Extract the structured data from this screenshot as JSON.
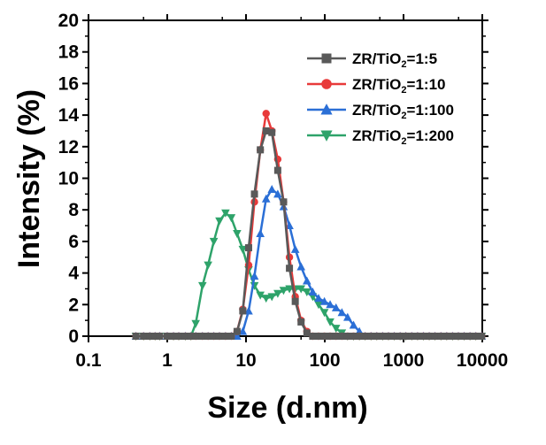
{
  "chart_data": {
    "type": "line",
    "xlabel": "Size (d.nm)",
    "ylabel": "Intensity (%)",
    "xscale": "log",
    "xlim": [
      0.1,
      10000
    ],
    "ylim": [
      0,
      20
    ],
    "xticks": [
      "0.1",
      "1",
      "10",
      "100",
      "1000",
      "10000"
    ],
    "yticks": [
      "0",
      "2",
      "4",
      "6",
      "8",
      "10",
      "12",
      "14",
      "16",
      "18",
      "20"
    ],
    "legend_position": "top-right",
    "grid": false,
    "x": [
      0.4,
      0.5,
      0.6,
      0.7,
      0.8,
      1.0,
      1.2,
      1.4,
      1.7,
      2.0,
      2.3,
      2.8,
      3.3,
      3.9,
      4.6,
      5.5,
      6.5,
      7.7,
      9.1,
      10.8,
      12.8,
      15.2,
      18.0,
      21.3,
      25.3,
      30.0,
      35.6,
      42.2,
      50.0,
      59.3,
      70.3,
      83.4,
      98.9,
      117,
      139,
      165,
      195,
      232,
      275,
      326,
      386,
      458,
      543,
      644,
      763,
      905,
      1070,
      1270,
      1510,
      1790,
      2120,
      2510,
      2980,
      3540,
      4190,
      4970,
      5890,
      6980,
      8280,
      9820
    ],
    "series": [
      {
        "name": "ZR/TiO2=1:5",
        "legend_main": "ZR/TiO",
        "legend_sub": "2",
        "legend_tail": "=1:5",
        "color": "#595959",
        "marker": "square",
        "values": [
          0,
          0,
          0,
          0,
          0,
          0,
          0,
          0,
          0,
          0,
          0,
          0,
          0,
          0,
          0,
          0,
          0,
          0.3,
          1.6,
          5.6,
          9.0,
          11.8,
          13.0,
          12.9,
          10.5,
          8.5,
          4.3,
          2.2,
          0.9,
          0.2,
          0,
          0,
          0,
          0,
          0,
          0,
          0,
          0,
          0,
          0,
          0,
          0,
          0,
          0,
          0,
          0,
          0,
          0,
          0,
          0,
          0,
          0,
          0,
          0,
          0,
          0,
          0,
          0,
          0,
          0
        ]
      },
      {
        "name": "ZR/TiO2=1:10",
        "legend_main": "ZR/TiO",
        "legend_sub": "2",
        "legend_tail": "=1:10",
        "color": "#e83a3a",
        "marker": "circle",
        "values": [
          0,
          0,
          0,
          0,
          0,
          0,
          0,
          0,
          0,
          0,
          0,
          0,
          0,
          0,
          0,
          0,
          0,
          0.3,
          1.7,
          4.5,
          8.5,
          11.8,
          14.1,
          13.0,
          11.2,
          8.5,
          5.0,
          2.5,
          1.0,
          0.3,
          0,
          0,
          0,
          0,
          0,
          0,
          0,
          0,
          0,
          0,
          0,
          0,
          0,
          0,
          0,
          0,
          0,
          0,
          0,
          0,
          0,
          0,
          0,
          0,
          0,
          0,
          0,
          0,
          0,
          0
        ]
      },
      {
        "name": "ZR/TiO2=1:100",
        "legend_main": "ZR/TiO",
        "legend_sub": "2",
        "legend_tail": "=1:100",
        "color": "#2b6fd6",
        "marker": "triangle-up",
        "values": [
          0,
          0,
          0,
          0,
          0,
          0,
          0,
          0,
          0,
          0,
          0,
          0,
          0,
          0,
          0,
          0,
          0,
          0,
          0.3,
          1.6,
          3.8,
          6.5,
          8.7,
          9.3,
          9.0,
          8.2,
          7.0,
          5.5,
          4.4,
          3.5,
          2.8,
          2.4,
          2.2,
          2.0,
          1.8,
          1.5,
          1.2,
          0.7,
          0.3,
          0,
          0,
          0,
          0,
          0,
          0,
          0,
          0,
          0,
          0,
          0,
          0,
          0,
          0,
          0,
          0,
          0,
          0,
          0,
          0,
          0
        ]
      },
      {
        "name": "ZR/TiO2=1:200",
        "legend_main": "ZR/TiO",
        "legend_sub": "2",
        "legend_tail": "=1:200",
        "color": "#2ea36a",
        "marker": "triangle-down",
        "values": [
          0,
          0,
          0,
          0,
          0,
          0,
          0,
          0,
          0,
          0,
          0.8,
          3.2,
          4.5,
          6.0,
          7.3,
          7.8,
          7.5,
          6.5,
          5.5,
          4.2,
          3.2,
          2.6,
          2.4,
          2.5,
          2.7,
          2.9,
          3.0,
          3.0,
          3.0,
          2.8,
          2.5,
          2.0,
          1.5,
          0.9,
          0.5,
          0.2,
          0,
          0,
          0,
          0,
          0,
          0,
          0,
          0,
          0,
          0,
          0,
          0,
          0,
          0,
          0,
          0,
          0,
          0,
          0,
          0,
          0,
          0,
          0,
          0
        ]
      }
    ]
  }
}
